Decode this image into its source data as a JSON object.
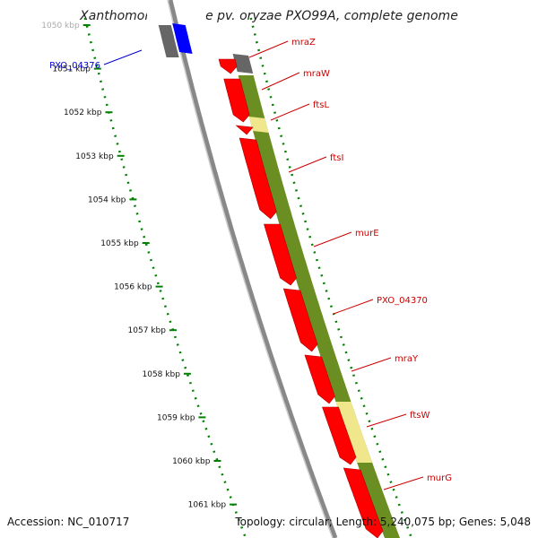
{
  "title": "Xanthomonas oryzae pv. oryzae PXO99A, complete genome",
  "footer": {
    "accession": "Accession: NC_010717",
    "summary": "Topology: circular; Length: 5,240,075 bp; Genes: 5,048"
  },
  "colors": {
    "gene_red": "#ff0000",
    "gene_gray": "#666666",
    "gene_blue": "#0000ff",
    "bar_green": "#6b8e23",
    "bar_yellow": "#f0e68c",
    "backbone": "#888888",
    "tick_green": "#008000",
    "label_red": "#cc0000",
    "label_blue": "#0000cc"
  },
  "ticks": [
    {
      "label": "1050 kbp"
    },
    {
      "label": "1051 kbp"
    },
    {
      "label": "1052 kbp"
    },
    {
      "label": "1053 kbp"
    },
    {
      "label": "1054 kbp"
    },
    {
      "label": "1055 kbp"
    },
    {
      "label": "1056 kbp"
    },
    {
      "label": "1057 kbp"
    },
    {
      "label": "1058 kbp"
    },
    {
      "label": "1059 kbp"
    },
    {
      "label": "1060 kbp"
    },
    {
      "label": "1061 kbp"
    }
  ],
  "gene_labels": [
    {
      "label": "PXO_04376"
    },
    {
      "label": "mraZ"
    },
    {
      "label": "mraW"
    },
    {
      "label": "ftsL"
    },
    {
      "label": "ftsI"
    },
    {
      "label": "murE"
    },
    {
      "label": "PXO_04370"
    },
    {
      "label": "mraY"
    },
    {
      "label": "ftsW"
    },
    {
      "label": "murG"
    }
  ]
}
